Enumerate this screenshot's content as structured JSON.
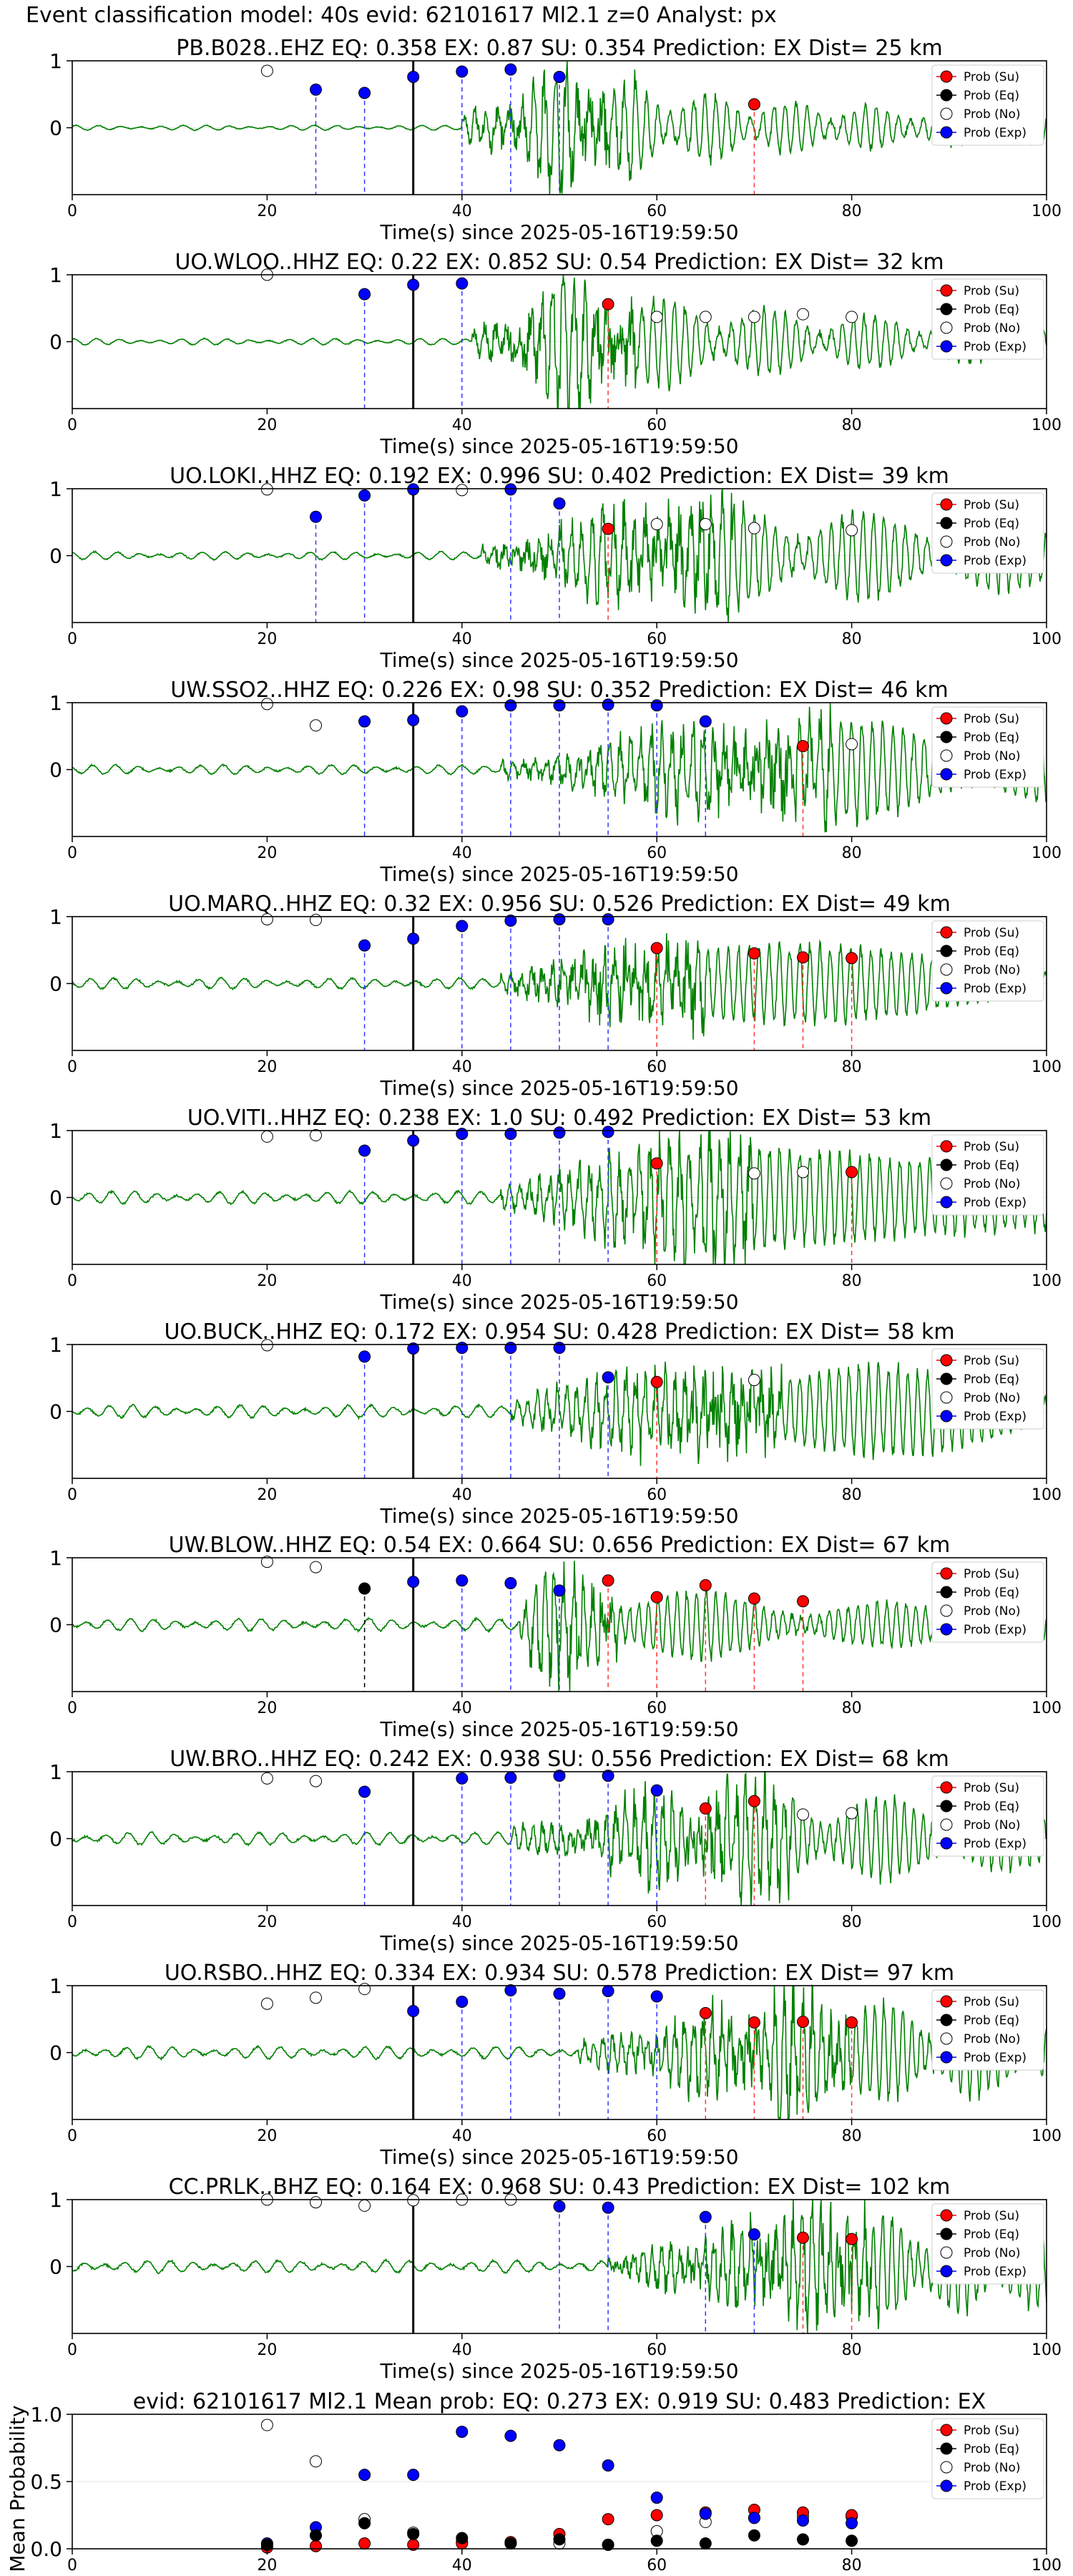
{
  "page": {
    "title": "Event classification model: 40s evid: 62101617 Ml2.1 z=0 Analyst: px"
  },
  "common": {
    "xlabel": "Time(s) since 2025-05-16T19:59:50",
    "xlim": [
      0,
      100
    ],
    "xticks": [
      0,
      20,
      40,
      60,
      80,
      100
    ],
    "wave_ylim": [
      -1,
      1
    ],
    "wave_yticks": [
      0,
      1
    ],
    "event_marker_time": 35,
    "legend": [
      "Prob (Su)",
      "Prob (Eq)",
      "Prob (No)",
      "Prob (Exp)"
    ],
    "legend_position": "right",
    "colors": {
      "waveform": "#008000",
      "su": "#ff0000",
      "eq": "#000000",
      "no": "#ffffff",
      "exp": "#0000ff",
      "vline_su": "#ff3333",
      "vline_exp": "#3333ff",
      "vline_eq": "#000000",
      "event_line": "#000000"
    }
  },
  "chart_data": [
    {
      "type": "scatter",
      "title": "PB.B028..EHZ   EQ: 0.358  EX: 0.87  SU: 0.354   Prediction: EX    Dist= 25 km",
      "wave_start": 40,
      "wave_peak": 50,
      "decay": 16,
      "no": [
        [
          20,
          0.85
        ]
      ],
      "exp": [
        [
          25,
          0.57
        ],
        [
          30,
          0.52
        ],
        [
          35,
          0.76
        ],
        [
          40,
          0.84
        ],
        [
          45,
          0.87
        ],
        [
          50,
          0.76
        ]
      ],
      "su": [
        [
          70,
          0.35
        ]
      ],
      "eq": []
    },
    {
      "type": "scatter",
      "title": "UO.WLOO..HHZ   EQ: 0.22  EX: 0.852  SU: 0.54   Prediction: EX    Dist= 32 km",
      "wave_start": 41,
      "wave_peak": 50,
      "decay": 22,
      "no": [
        [
          20,
          1.0
        ],
        [
          60,
          0.37
        ],
        [
          65,
          0.37
        ],
        [
          70,
          0.37
        ],
        [
          75,
          0.41
        ],
        [
          80,
          0.37
        ]
      ],
      "exp": [
        [
          30,
          0.71
        ],
        [
          35,
          0.85
        ],
        [
          40,
          0.87
        ]
      ],
      "su": [
        [
          55,
          0.56
        ]
      ],
      "eq": []
    },
    {
      "type": "scatter",
      "title": "UO.LOKI..HHZ   EQ: 0.192  EX: 0.996  SU: 0.402   Prediction: EX    Dist= 39 km",
      "wave_start": 42,
      "wave_peak": 60,
      "decay": 40,
      "no": [
        [
          20,
          0.99
        ],
        [
          40,
          0.98
        ],
        [
          60,
          0.47
        ],
        [
          65,
          0.47
        ],
        [
          70,
          0.41
        ],
        [
          80,
          0.38
        ]
      ],
      "exp": [
        [
          25,
          0.58
        ],
        [
          30,
          0.9
        ],
        [
          35,
          0.99
        ],
        [
          45,
          0.99
        ],
        [
          50,
          0.78
        ]
      ],
      "su": [
        [
          55,
          0.4
        ]
      ],
      "eq": []
    },
    {
      "type": "scatter",
      "title": "UW.SSO2..HHZ   EQ: 0.226  EX: 0.98  SU: 0.352   Prediction: EX    Dist= 46 km",
      "wave_start": 44,
      "wave_peak": 70,
      "decay": 40,
      "no": [
        [
          20,
          0.98
        ],
        [
          25,
          0.66
        ],
        [
          80,
          0.38
        ]
      ],
      "exp": [
        [
          30,
          0.72
        ],
        [
          35,
          0.74
        ],
        [
          40,
          0.87
        ],
        [
          45,
          0.96
        ],
        [
          50,
          0.96
        ],
        [
          55,
          0.97
        ],
        [
          60,
          0.96
        ],
        [
          65,
          0.72
        ]
      ],
      "su": [
        [
          75,
          0.35
        ]
      ],
      "eq": []
    },
    {
      "type": "scatter",
      "title": "UO.MARQ..HHZ   EQ: 0.32  EX: 0.956  SU: 0.526   Prediction: EX    Dist= 49 km",
      "wave_start": 44,
      "wave_peak": 57,
      "decay": 28,
      "no": [
        [
          20,
          0.96
        ],
        [
          25,
          0.95
        ]
      ],
      "exp": [
        [
          30,
          0.57
        ],
        [
          35,
          0.67
        ],
        [
          40,
          0.86
        ],
        [
          45,
          0.94
        ],
        [
          50,
          0.96
        ],
        [
          55,
          0.96
        ]
      ],
      "su": [
        [
          60,
          0.53
        ],
        [
          70,
          0.45
        ],
        [
          75,
          0.39
        ],
        [
          80,
          0.38
        ]
      ],
      "eq": []
    },
    {
      "type": "scatter",
      "title": "UO.VITI..HHZ   EQ: 0.238  EX: 1.0  SU: 0.492   Prediction: EX    Dist= 53 km",
      "wave_start": 44,
      "wave_peak": 62,
      "decay": 35,
      "no": [
        [
          20,
          0.91
        ],
        [
          25,
          0.93
        ],
        [
          70,
          0.36
        ],
        [
          75,
          0.38
        ]
      ],
      "exp": [
        [
          30,
          0.7
        ],
        [
          35,
          0.85
        ],
        [
          40,
          0.95
        ],
        [
          45,
          0.95
        ],
        [
          50,
          0.97
        ],
        [
          55,
          0.98
        ]
      ],
      "su": [
        [
          60,
          0.51
        ],
        [
          80,
          0.38
        ]
      ],
      "eq": []
    },
    {
      "type": "scatter",
      "title": "UO.BUCK..HHZ   EQ: 0.172  EX: 0.954  SU: 0.428   Prediction: EX    Dist= 58 km",
      "wave_start": 45,
      "wave_peak": 65,
      "decay": 40,
      "no": [
        [
          20,
          0.99
        ],
        [
          70,
          0.47
        ]
      ],
      "exp": [
        [
          30,
          0.82
        ],
        [
          35,
          0.94
        ],
        [
          40,
          0.95
        ],
        [
          45,
          0.95
        ],
        [
          50,
          0.95
        ],
        [
          55,
          0.51
        ]
      ],
      "su": [
        [
          60,
          0.44
        ]
      ],
      "eq": []
    },
    {
      "type": "scatter",
      "title": "UW.BLOW..HHZ   EQ: 0.54  EX: 0.664  SU: 0.656   Prediction: EX    Dist= 67 km",
      "wave_start": 46,
      "wave_peak": 48,
      "decay": 18,
      "no": [
        [
          20,
          0.94
        ],
        [
          25,
          0.86
        ]
      ],
      "exp": [
        [
          35,
          0.64
        ],
        [
          40,
          0.66
        ],
        [
          45,
          0.62
        ],
        [
          50,
          0.51
        ]
      ],
      "su": [
        [
          55,
          0.66
        ],
        [
          60,
          0.41
        ],
        [
          65,
          0.59
        ],
        [
          70,
          0.39
        ],
        [
          75,
          0.35
        ]
      ],
      "eq": [
        [
          30,
          0.54
        ]
      ]
    },
    {
      "type": "scatter",
      "title": "UW.BRO..HHZ   EQ: 0.242  EX: 0.938  SU: 0.556   Prediction: EX    Dist= 68 km",
      "wave_start": 45,
      "wave_peak": 66,
      "decay": 30,
      "no": [
        [
          20,
          0.9
        ],
        [
          25,
          0.86
        ],
        [
          75,
          0.36
        ],
        [
          80,
          0.38
        ]
      ],
      "exp": [
        [
          30,
          0.7
        ],
        [
          40,
          0.9
        ],
        [
          45,
          0.91
        ],
        [
          50,
          0.94
        ],
        [
          55,
          0.94
        ],
        [
          60,
          0.72
        ]
      ],
      "su": [
        [
          65,
          0.45
        ],
        [
          70,
          0.56
        ]
      ],
      "eq": []
    },
    {
      "type": "scatter",
      "title": "UO.RSBO..HHZ   EQ: 0.334  EX: 0.934  SU: 0.578   Prediction: EX    Dist= 97 km",
      "wave_start": 52,
      "wave_peak": 72,
      "decay": 40,
      "no": [
        [
          20,
          0.73
        ],
        [
          25,
          0.82
        ],
        [
          30,
          0.95
        ]
      ],
      "exp": [
        [
          35,
          0.62
        ],
        [
          40,
          0.76
        ],
        [
          45,
          0.93
        ],
        [
          50,
          0.88
        ],
        [
          55,
          0.92
        ],
        [
          60,
          0.84
        ]
      ],
      "su": [
        [
          65,
          0.59
        ],
        [
          70,
          0.45
        ],
        [
          75,
          0.46
        ],
        [
          80,
          0.45
        ]
      ],
      "eq": []
    },
    {
      "type": "scatter",
      "title": "CC.PRLK..BHZ   EQ: 0.164  EX: 0.968  SU: 0.43   Prediction: EX    Dist= 102 km",
      "wave_start": 55,
      "wave_peak": 75,
      "decay": 40,
      "no": [
        [
          20,
          1.0
        ],
        [
          25,
          0.96
        ],
        [
          30,
          0.91
        ],
        [
          35,
          0.99
        ],
        [
          40,
          1.0
        ],
        [
          45,
          1.0
        ]
      ],
      "exp": [
        [
          50,
          0.9
        ],
        [
          55,
          0.88
        ],
        [
          65,
          0.74
        ],
        [
          70,
          0.48
        ]
      ],
      "su": [
        [
          75,
          0.43
        ],
        [
          80,
          0.41
        ]
      ],
      "eq": []
    },
    {
      "type": "scatter",
      "title": "evid: 62101617  Ml2.1    Mean prob:    EQ: 0.273  EX: 0.919  SU: 0.483   Prediction: EX",
      "ylabel": "Mean Probability",
      "ylim": [
        0,
        1
      ],
      "yticks": [
        0.0,
        0.5,
        1.0
      ],
      "x": [
        20,
        25,
        30,
        35,
        40,
        45,
        50,
        55,
        60,
        65,
        70,
        75,
        80
      ],
      "no": [
        0.92,
        0.65,
        0.22,
        0.12,
        0.05,
        0.04,
        0.04,
        0.03,
        0.13,
        0.2,
        0.23,
        0.24,
        0.24
      ],
      "exp": [
        0.04,
        0.16,
        0.55,
        0.55,
        0.87,
        0.84,
        0.77,
        0.62,
        0.38,
        0.26,
        0.23,
        0.21,
        0.19
      ],
      "su": [
        0.01,
        0.02,
        0.04,
        0.03,
        0.04,
        0.05,
        0.11,
        0.22,
        0.25,
        0.27,
        0.29,
        0.27,
        0.25
      ],
      "eq": [
        0.03,
        0.1,
        0.19,
        0.11,
        0.08,
        0.04,
        0.07,
        0.03,
        0.06,
        0.04,
        0.1,
        0.07,
        0.06
      ]
    }
  ]
}
